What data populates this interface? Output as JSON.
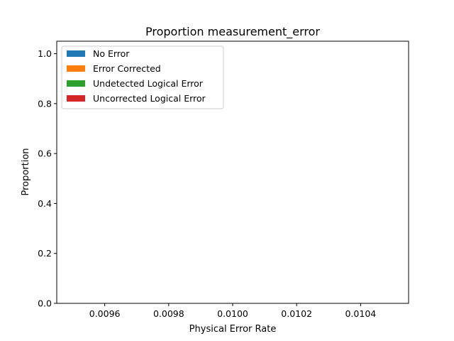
{
  "chart_data": {
    "type": "area",
    "title": "Proportion measurement_error",
    "xlabel": "Physical Error Rate",
    "ylabel": "Proportion",
    "xlim": [
      0.00945,
      0.01055
    ],
    "ylim": [
      0,
      1.05
    ],
    "x_ticks": [
      "0.0096",
      "0.0098",
      "0.0100",
      "0.0102",
      "0.0104"
    ],
    "x_tick_values": [
      0.0096,
      0.0098,
      0.01,
      0.0102,
      0.0104
    ],
    "y_ticks": [
      "0.0",
      "0.2",
      "0.4",
      "0.6",
      "0.8",
      "1.0"
    ],
    "y_tick_values": [
      0.0,
      0.2,
      0.4,
      0.6,
      0.8,
      1.0
    ],
    "grid": false,
    "legend_position": "top-left",
    "series": [
      {
        "name": "No Error",
        "color": "#1f77b4",
        "values": []
      },
      {
        "name": "Error Corrected",
        "color": "#ff7f0e",
        "values": []
      },
      {
        "name": "Undetected Logical Error",
        "color": "#2ca02c",
        "values": []
      },
      {
        "name": "Uncorrected Logical Error",
        "color": "#d62728",
        "values": []
      }
    ]
  }
}
